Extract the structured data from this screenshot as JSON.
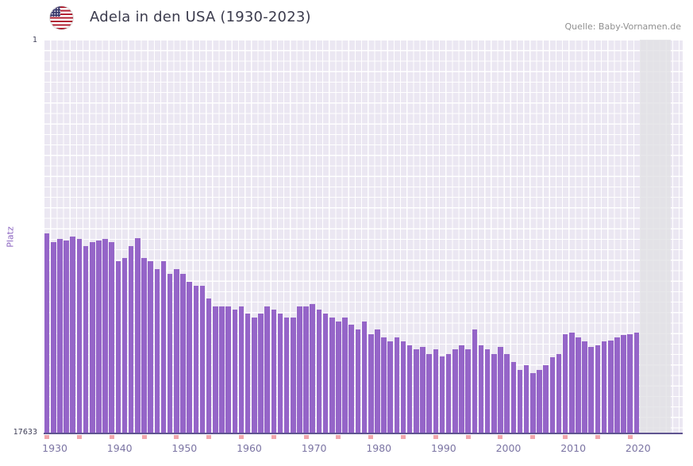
{
  "header": {
    "title": "Adela in den USA (1930-2023)",
    "source": "Quelle: Baby-Vornamen.de",
    "flag_icon": "us-flag-icon"
  },
  "axes": {
    "y_label": "Platz",
    "y_top_tick": "1",
    "y_bottom_tick": "17633",
    "x_tick_labels": [
      "1930",
      "1940",
      "1950",
      "1960",
      "1970",
      "1980",
      "1990",
      "2000",
      "2010",
      "2020"
    ],
    "minor_tick_step_years": 5
  },
  "colors": {
    "bar": "#9565c8",
    "plot_background": "#ebe7f2",
    "grid": "#ffffff",
    "axis_line": "#5f5490",
    "minor_tick": "#f2a7ad",
    "x_label": "#7b74a3",
    "title_text": "#3b3b4d",
    "source_text": "#909090",
    "recent_strip": "#e0e0e4"
  },
  "chart_data": {
    "type": "bar",
    "title": "Adela in den USA (1930-2023)",
    "xlabel": "",
    "ylabel": "Platz",
    "y_axis": {
      "min": 1,
      "max": 17633,
      "inverted": true
    },
    "x_range": [
      1930,
      2023
    ],
    "no_data_years": [
      2022,
      2023
    ],
    "legend": "none",
    "grid": true,
    "years": [
      1930,
      1931,
      1932,
      1933,
      1934,
      1935,
      1936,
      1937,
      1938,
      1939,
      1940,
      1941,
      1942,
      1943,
      1944,
      1945,
      1946,
      1947,
      1948,
      1949,
      1950,
      1951,
      1952,
      1953,
      1954,
      1955,
      1956,
      1957,
      1958,
      1959,
      1960,
      1961,
      1962,
      1963,
      1964,
      1965,
      1966,
      1967,
      1968,
      1969,
      1970,
      1971,
      1972,
      1973,
      1974,
      1975,
      1976,
      1977,
      1978,
      1979,
      1980,
      1981,
      1982,
      1983,
      1984,
      1985,
      1986,
      1987,
      1988,
      1989,
      1990,
      1991,
      1992,
      1993,
      1994,
      1995,
      1996,
      1997,
      1998,
      1999,
      2000,
      2001,
      2002,
      2003,
      2004,
      2005,
      2006,
      2007,
      2008,
      2009,
      2010,
      2011,
      2012,
      2013,
      2014,
      2015,
      2016,
      2017,
      2018,
      2019,
      2020,
      2021
    ],
    "ranks": [
      8700,
      9100,
      8950,
      9000,
      8850,
      8950,
      9250,
      9100,
      9000,
      8950,
      9100,
      9950,
      9800,
      9250,
      8900,
      9800,
      9950,
      10300,
      9950,
      10500,
      10300,
      10500,
      10850,
      11050,
      11050,
      11600,
      11950,
      11950,
      11950,
      12100,
      11950,
      12300,
      12450,
      12300,
      11950,
      12100,
      12300,
      12450,
      12450,
      11950,
      11950,
      11850,
      12100,
      12300,
      12450,
      12650,
      12450,
      12800,
      13000,
      12650,
      13200,
      13000,
      13350,
      13550,
      13350,
      13550,
      13700,
      13900,
      13800,
      14100,
      13900,
      14200,
      14100,
      13900,
      13700,
      13900,
      13000,
      13700,
      13900,
      14100,
      13800,
      14100,
      14450,
      14800,
      14600,
      14950,
      14800,
      14600,
      14250,
      14100,
      13200,
      13150,
      13350,
      13550,
      13800,
      13700,
      13550,
      13500,
      13350,
      13250,
      13200,
      13150
    ]
  }
}
